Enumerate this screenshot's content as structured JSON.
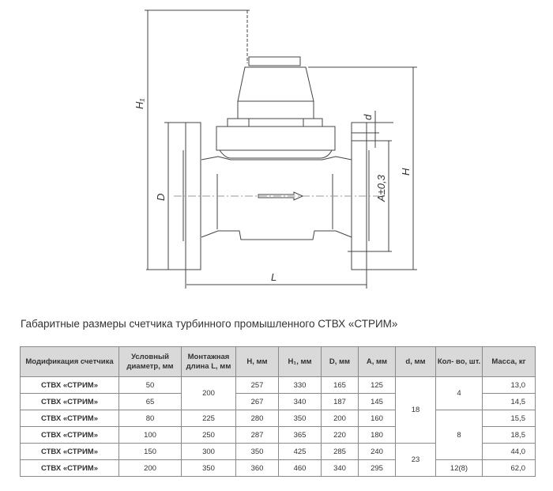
{
  "drawing": {
    "labels": {
      "H1": "H₁",
      "H": "H",
      "D": "D",
      "L": "L",
      "d": "d",
      "A": "A±0,3"
    }
  },
  "caption": "Габаритные размеры счетчика турбинного промышленного СТВХ «СТРИМ»",
  "table": {
    "headers": [
      "Модификация счетчика",
      "Условный диаметр, мм",
      "Монтажная длина L, мм",
      "H, мм",
      "H₁, мм",
      "D, мм",
      "A, мм",
      "d, мм",
      "Кол- во, шт.",
      "Масса, кг"
    ],
    "rows": [
      {
        "model": "СТВХ «СТРИМ»",
        "dn": "50",
        "L": "200",
        "H": "257",
        "H1": "330",
        "D": "165",
        "A": "125",
        "d": "18",
        "qty": "4",
        "mass": "13,0"
      },
      {
        "model": "СТВХ «СТРИМ»",
        "dn": "65",
        "H": "267",
        "H1": "340",
        "D": "187",
        "A": "145",
        "mass": "14,5"
      },
      {
        "model": "СТВХ «СТРИМ»",
        "dn": "80",
        "L": "225",
        "H": "280",
        "H1": "350",
        "D": "200",
        "A": "160",
        "qty": "8",
        "mass": "15,5"
      },
      {
        "model": "СТВХ «СТРИМ»",
        "dn": "100",
        "L": "250",
        "H": "287",
        "H1": "365",
        "D": "220",
        "A": "180",
        "mass": "18,5"
      },
      {
        "model": "СТВХ «СТРИМ»",
        "dn": "150",
        "L": "300",
        "H": "350",
        "H1": "425",
        "D": "285",
        "A": "240",
        "d": "23",
        "mass": "44,0"
      },
      {
        "model": "СТВХ «СТРИМ»",
        "dn": "200",
        "L": "350",
        "H": "360",
        "H1": "460",
        "D": "340",
        "A": "295",
        "qty": "12(8)",
        "mass": "62,0"
      }
    ]
  }
}
